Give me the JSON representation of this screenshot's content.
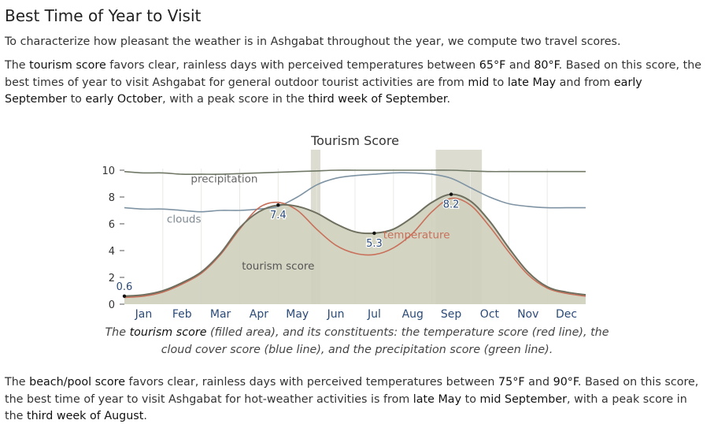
{
  "section": {
    "title": "Best Time of Year to Visit",
    "intro": "To characterize how pleasant the weather is in Ashgabat throughout the year, we compute two travel scores.",
    "tourism_paragraph": {
      "t1": "The ",
      "k1": "tourism score",
      "t2": " favors clear, rainless days with perceived temperatures between ",
      "k2": "65°F",
      "t3": " and ",
      "k3": "80°F",
      "t4": ". Based on this score, the best times of year to visit Ashgabat for general outdoor tourist activities are from ",
      "k4": "mid",
      "t5": " to ",
      "k5": "late May",
      "t6": " and from ",
      "k6": "early September",
      "t7": " to ",
      "k7": "early October",
      "t8": ", with a peak score in the ",
      "k8": "third week of September",
      "t9": "."
    },
    "caption": {
      "t1": "The ",
      "k1": "tourism score",
      "t2": " (filled area), and its constituents: the temperature score (red line), the",
      "line2": "cloud cover score (blue line), and the precipitation score (green line)."
    },
    "beach_paragraph": {
      "t1": "The ",
      "k1": "beach/pool score",
      "t2": " favors clear, rainless days with perceived temperatures between ",
      "k2": "75°F",
      "t3": " and ",
      "k3": "90°F",
      "t4": ". Based on this score, the best time of year to visit Ashgabat for hot-weather activities is from ",
      "k4": "late May",
      "t5": " to ",
      "k5": "mid September",
      "t6": ", with a peak score in the ",
      "k6": "third week of August",
      "t7": "."
    }
  },
  "chart_data": {
    "type": "area",
    "title": "Tourism Score",
    "categories": [
      "Jan",
      "Feb",
      "Mar",
      "Apr",
      "May",
      "Jun",
      "Jul",
      "Aug",
      "Sep",
      "Oct",
      "Nov",
      "Dec"
    ],
    "y_ticks": [
      0,
      2,
      4,
      6,
      8,
      10
    ],
    "ylim": [
      0,
      10
    ],
    "xlim": [
      0,
      12
    ],
    "highlight_bands": [
      [
        4.85,
        5.1
      ],
      [
        8.1,
        9.3
      ]
    ],
    "series": [
      {
        "name": "tourism score",
        "color": "#6f6f5f",
        "fill": "#cfcfbd",
        "x": [
          0,
          0.5,
          1,
          1.5,
          2,
          2.5,
          3,
          3.5,
          4,
          4.5,
          5,
          5.5,
          6,
          6.5,
          7,
          7.5,
          8,
          8.5,
          9,
          9.5,
          10,
          10.5,
          11,
          11.5,
          12
        ],
        "values": [
          0.6,
          0.7,
          1.0,
          1.6,
          2.4,
          3.8,
          5.7,
          6.9,
          7.4,
          7.3,
          6.8,
          6.0,
          5.4,
          5.3,
          5.6,
          6.5,
          7.6,
          8.2,
          7.7,
          6.2,
          4.2,
          2.4,
          1.3,
          0.9,
          0.7
        ]
      },
      {
        "name": "temperature",
        "color": "#c8705a",
        "x": [
          0,
          0.5,
          1,
          1.5,
          2,
          2.5,
          3,
          3.5,
          4,
          4.5,
          5,
          5.5,
          6,
          6.5,
          7,
          7.5,
          8,
          8.5,
          9,
          9.5,
          10,
          10.5,
          11,
          11.5,
          12
        ],
        "values": [
          0.5,
          0.6,
          0.9,
          1.5,
          2.3,
          3.7,
          5.6,
          7.2,
          7.6,
          7.0,
          5.6,
          4.4,
          3.8,
          3.7,
          4.2,
          5.3,
          6.9,
          7.9,
          7.4,
          5.8,
          3.9,
          2.2,
          1.2,
          0.8,
          0.6
        ]
      },
      {
        "name": "clouds",
        "color": "#7e93a3",
        "x": [
          0,
          0.5,
          1,
          1.5,
          2,
          2.5,
          3,
          3.5,
          4,
          4.5,
          5,
          5.5,
          6,
          6.5,
          7,
          7.5,
          8,
          8.5,
          9,
          9.5,
          10,
          10.5,
          11,
          11.5,
          12
        ],
        "values": [
          7.2,
          7.1,
          7.1,
          7.0,
          6.9,
          7.0,
          7.0,
          7.1,
          7.3,
          8.0,
          8.9,
          9.4,
          9.6,
          9.7,
          9.8,
          9.8,
          9.7,
          9.4,
          8.7,
          8.0,
          7.5,
          7.3,
          7.2,
          7.2,
          7.2
        ]
      },
      {
        "name": "precipitation",
        "color": "#707866",
        "x": [
          0,
          0.5,
          1,
          1.5,
          2,
          2.5,
          3,
          3.5,
          4,
          4.5,
          5,
          5.5,
          6,
          6.5,
          7,
          7.5,
          8,
          8.5,
          9,
          9.5,
          10,
          10.5,
          11,
          11.5,
          12
        ],
        "values": [
          9.9,
          9.8,
          9.8,
          9.7,
          9.7,
          9.7,
          9.75,
          9.8,
          9.85,
          9.9,
          9.95,
          10.0,
          10.0,
          10.0,
          10.0,
          10.0,
          10.0,
          10.0,
          9.95,
          9.9,
          9.9,
          9.9,
          9.9,
          9.9,
          9.9
        ]
      }
    ],
    "annotations": [
      {
        "text": "0.6",
        "x": 0.0,
        "y": 0.6
      },
      {
        "text": "7.4",
        "x": 4.0,
        "y": 7.4
      },
      {
        "text": "5.3",
        "x": 6.5,
        "y": 5.3
      },
      {
        "text": "8.2",
        "x": 8.5,
        "y": 8.2
      }
    ],
    "series_labels": [
      {
        "text": "precipitation",
        "x": 2.6,
        "y": 9.1
      },
      {
        "text": "clouds",
        "x": 1.55,
        "y": 6.1
      },
      {
        "text": "temperature",
        "x": 7.6,
        "y": 4.9
      },
      {
        "text": "tourism score",
        "x": 4.0,
        "y": 2.6
      }
    ]
  }
}
